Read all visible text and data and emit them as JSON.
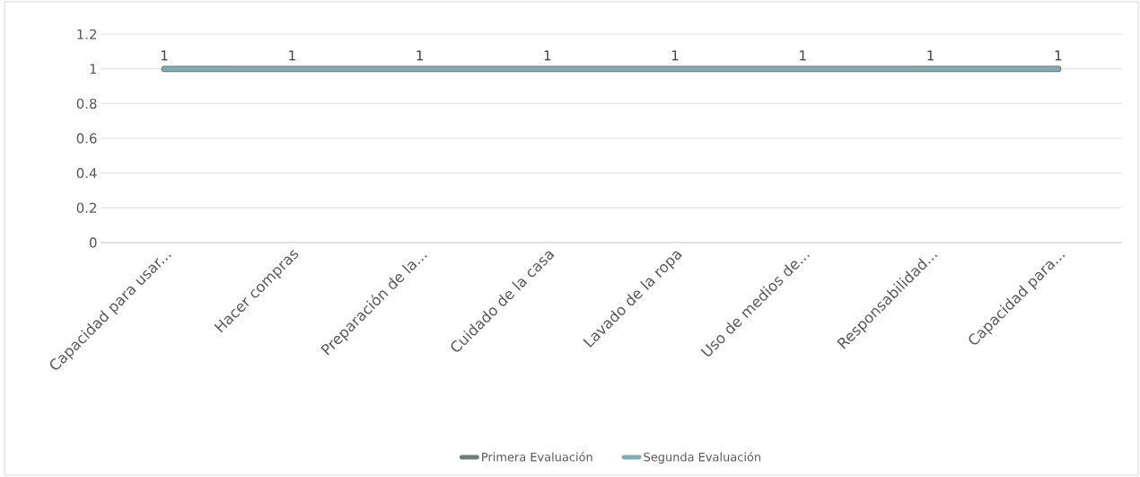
{
  "chart_data": {
    "type": "line",
    "categories": [
      "Capacidad para usar...",
      "Hacer compras",
      "Preparación de la...",
      "Cuidado de la casa",
      "Lavado de la ropa",
      "Uso de medios de...",
      "Responsabilidad...",
      "Capacidad para..."
    ],
    "series": [
      {
        "name": "Primera Evaluación",
        "color": "#6b7d7c",
        "values": [
          1,
          1,
          1,
          1,
          1,
          1,
          1,
          1
        ]
      },
      {
        "name": "Segunda Evaluación",
        "color": "#7fadb6",
        "values": [
          1,
          1,
          1,
          1,
          1,
          1,
          1,
          1
        ],
        "value_labels": [
          "1",
          "1",
          "1",
          "1",
          "1",
          "1",
          "1",
          "1"
        ]
      }
    ],
    "ylim": [
      0,
      1.2
    ],
    "yticks": [
      0,
      0.2,
      0.4,
      0.6,
      0.8,
      1,
      1.2
    ],
    "grid": "y",
    "legend": "bottom",
    "marker": "none",
    "line_style": "solid"
  }
}
